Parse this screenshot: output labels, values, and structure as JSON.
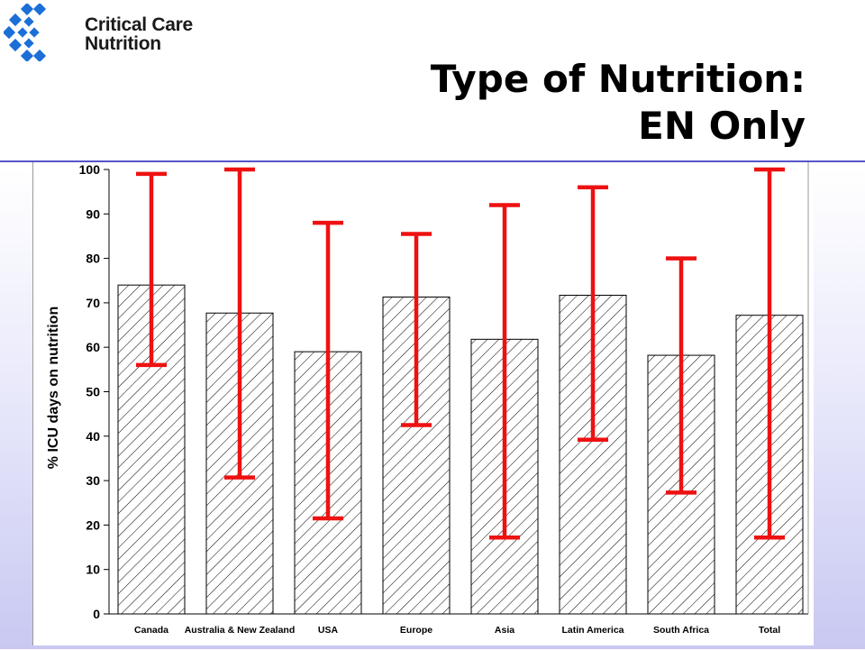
{
  "header": {
    "logo_line1": "Critical Care",
    "logo_line2": "Nutrition",
    "title_line1": "Type of Nutrition:",
    "title_line2": "EN Only"
  },
  "colors": {
    "error_bar": "#ee1111",
    "logo_blue": "#1b6fd6",
    "rule": "#5555cc"
  },
  "chart_data": {
    "type": "bar",
    "title": "",
    "xlabel": "",
    "ylabel": "% ICU days on nutrition",
    "ylim": [
      0,
      100
    ],
    "yticks": [
      0,
      10,
      20,
      30,
      40,
      50,
      60,
      70,
      80,
      90,
      100
    ],
    "categories": [
      "Canada",
      "Australia & New Zealand",
      "USA",
      "Europe",
      "Asia",
      "Latin America",
      "South Africa",
      "Total"
    ],
    "values": [
      74,
      67.7,
      59,
      71.3,
      61.8,
      71.7,
      58.2,
      67.2
    ],
    "range_low": [
      56,
      30.7,
      21.5,
      42.5,
      17.2,
      39.2,
      27.3,
      17.2
    ],
    "range_high": [
      99,
      100,
      88,
      85.5,
      92,
      96,
      80,
      100
    ],
    "bar_fill": "hatched",
    "grid": false,
    "legend": "none"
  }
}
